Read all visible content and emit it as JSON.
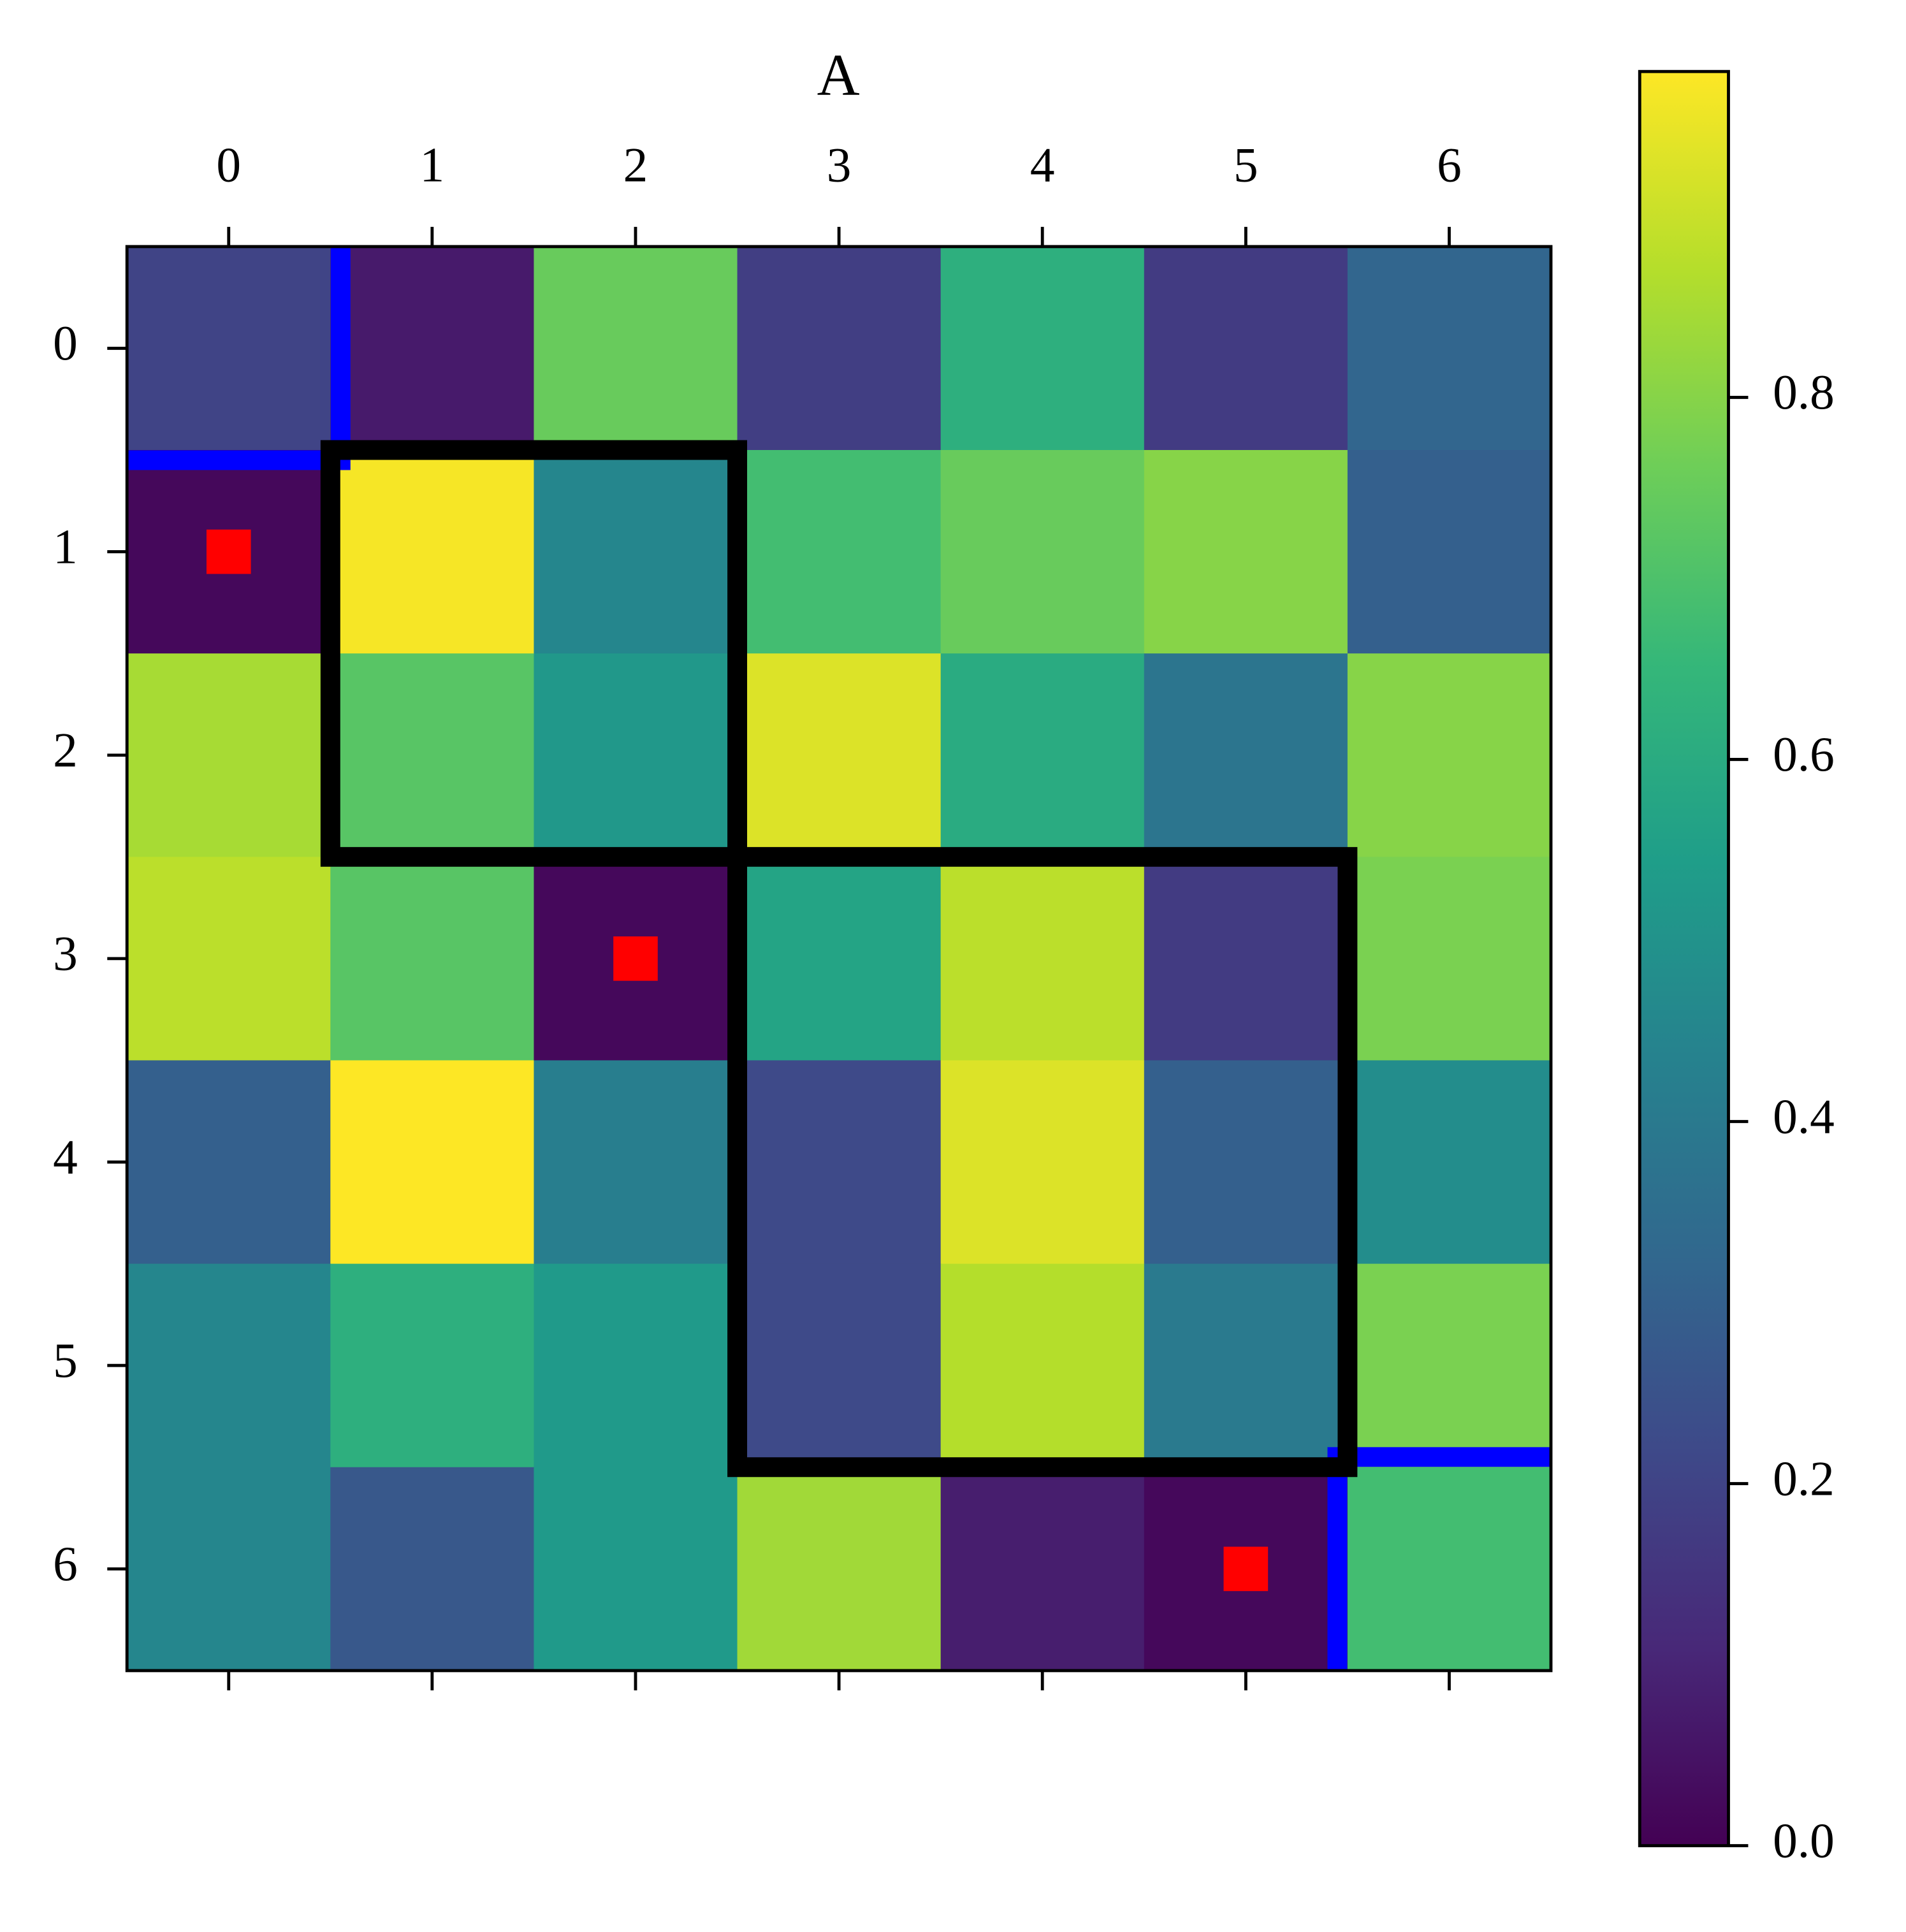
{
  "chart_data": {
    "type": "heatmap",
    "title": "A",
    "values": [
      [
        0.2,
        0.07,
        0.75,
        0.18,
        0.62,
        0.17,
        0.32
      ],
      [
        0.02,
        0.97,
        0.45,
        0.68,
        0.75,
        0.8,
        0.3
      ],
      [
        0.85,
        0.72,
        0.52,
        0.93,
        0.6,
        0.38,
        0.8
      ],
      [
        0.88,
        0.72,
        0.02,
        0.57,
        0.88,
        0.17,
        0.78
      ],
      [
        0.3,
        0.98,
        0.42,
        0.22,
        0.93,
        0.3,
        0.48
      ],
      [
        0.45,
        0.62,
        0.53,
        0.22,
        0.87,
        0.4,
        0.78
      ],
      [
        0.45,
        0.27,
        0.53,
        0.84,
        0.08,
        0.02,
        0.68
      ]
    ],
    "xticks": [
      0,
      1,
      2,
      3,
      4,
      5,
      6
    ],
    "yticks": [
      0,
      1,
      2,
      3,
      4,
      5,
      6
    ],
    "xlim": [
      -0.5,
      6.5
    ],
    "ylim": [
      6.5,
      -0.5
    ],
    "colormap": "viridis",
    "clim": [
      0,
      0.98
    ],
    "cticks": [
      {
        "value": 0,
        "label": "0.0"
      },
      0.2,
      0.4,
      0.6,
      0.8
    ],
    "highlights": [
      [
        0,
        0
      ],
      [
        6,
        6
      ]
    ],
    "highlight_color": "#0000ff",
    "markers": [
      [
        1,
        0
      ],
      [
        3,
        2
      ],
      [
        6,
        5
      ]
    ],
    "marker_color": "#ff0000",
    "outline": [
      [
        0.5,
        0.5
      ],
      [
        2.5,
        0.5
      ],
      [
        2.5,
        2.5
      ],
      [
        5.5,
        2.5
      ],
      [
        5.5,
        5.5
      ],
      [
        2.5,
        5.5
      ],
      [
        2.5,
        2.5
      ],
      [
        0.5,
        2.5
      ]
    ],
    "outline_color": "#000000"
  }
}
